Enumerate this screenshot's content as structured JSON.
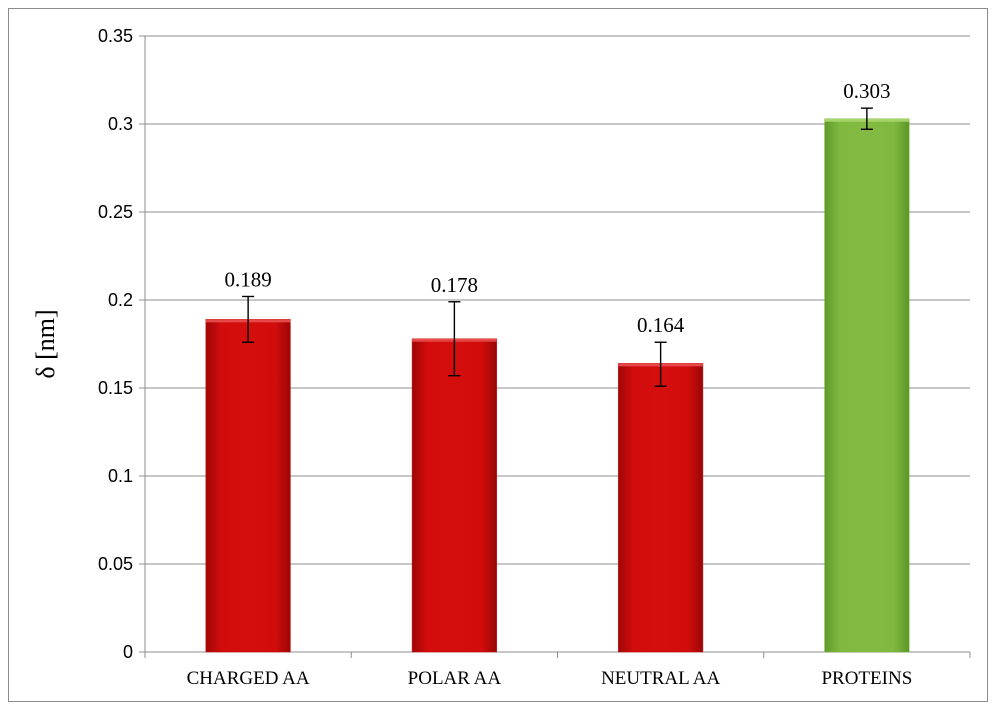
{
  "chart_data": {
    "type": "bar",
    "title": "",
    "xlabel": "",
    "ylabel": "δ [nm]",
    "ylim": [
      0,
      0.35
    ],
    "yticks": [
      "0",
      "0.05",
      "0.1",
      "0.15",
      "0.2",
      "0.25",
      "0.3",
      "0.35"
    ],
    "grid": true,
    "categories": [
      "CHARGED AA",
      "POLAR AA",
      "NEUTRAL AA",
      "PROTEINS"
    ],
    "values": [
      0.189,
      0.178,
      0.164,
      0.303
    ],
    "value_labels": [
      "0.189",
      "0.178",
      "0.164",
      "0.303"
    ],
    "error_low": [
      0.176,
      0.157,
      0.151,
      0.297
    ],
    "error_high": [
      0.202,
      0.199,
      0.176,
      0.309
    ],
    "colors": [
      "#cc0a0a",
      "#cc0a0a",
      "#cc0a0a",
      "#7ab43c"
    ]
  }
}
